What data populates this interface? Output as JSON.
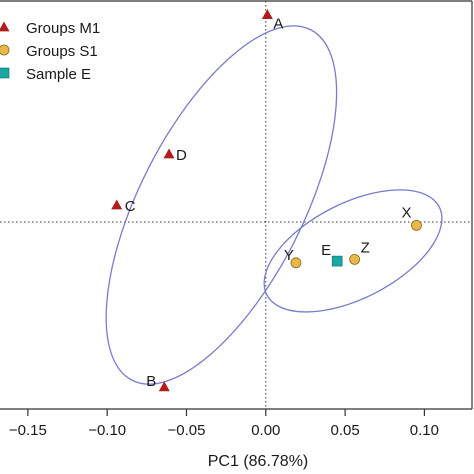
{
  "chart_data": {
    "type": "scatter",
    "xlabel": "PC1 (86.78%)",
    "ylabel": "",
    "xlim": [
      -0.16,
      0.13
    ],
    "ylim": [
      -0.11,
      0.13
    ],
    "x_ticks": [
      {
        "value": -0.15,
        "label": "−0.15"
      },
      {
        "value": -0.1,
        "label": "−0.10"
      },
      {
        "value": -0.05,
        "label": "−0.05"
      },
      {
        "value": 0.0,
        "label": "0.00"
      },
      {
        "value": 0.05,
        "label": "0.05"
      },
      {
        "value": 0.1,
        "label": "0.10"
      }
    ],
    "reference_lines": {
      "x": 0,
      "y": 0
    },
    "legend_position": "top-left",
    "series": [
      {
        "name": "Groups M1",
        "marker": "triangle",
        "color": "#b11c1c",
        "points": [
          {
            "label": "A",
            "x": 0.001,
            "y": 0.122
          },
          {
            "label": "D",
            "x": -0.061,
            "y": 0.04
          },
          {
            "label": "C",
            "x": -0.094,
            "y": 0.01
          },
          {
            "label": "B",
            "x": -0.064,
            "y": -0.097
          }
        ]
      },
      {
        "name": "Groups S1",
        "marker": "circle",
        "color": "#e8b84a",
        "points": [
          {
            "label": "X",
            "x": 0.095,
            "y": -0.002
          },
          {
            "label": "Y",
            "x": 0.019,
            "y": -0.024
          },
          {
            "label": "Z",
            "x": 0.056,
            "y": -0.022
          }
        ]
      },
      {
        "name": "Sample E",
        "marker": "square",
        "color": "#1aa6a1",
        "points": [
          {
            "label": "E",
            "x": 0.045,
            "y": -0.023
          }
        ]
      }
    ],
    "ellipses": [
      {
        "group": "Groups M1",
        "color": "#7a7acc",
        "cx": -0.028,
        "cy": 0.01,
        "rx": 0.124,
        "ry": 0.0515,
        "angle_deg": -63
      },
      {
        "group": "Groups S1",
        "color": "#7a7acc",
        "cx": 0.055,
        "cy": -0.017,
        "rx": 0.061,
        "ry": 0.03,
        "angle_deg": -27
      }
    ]
  }
}
